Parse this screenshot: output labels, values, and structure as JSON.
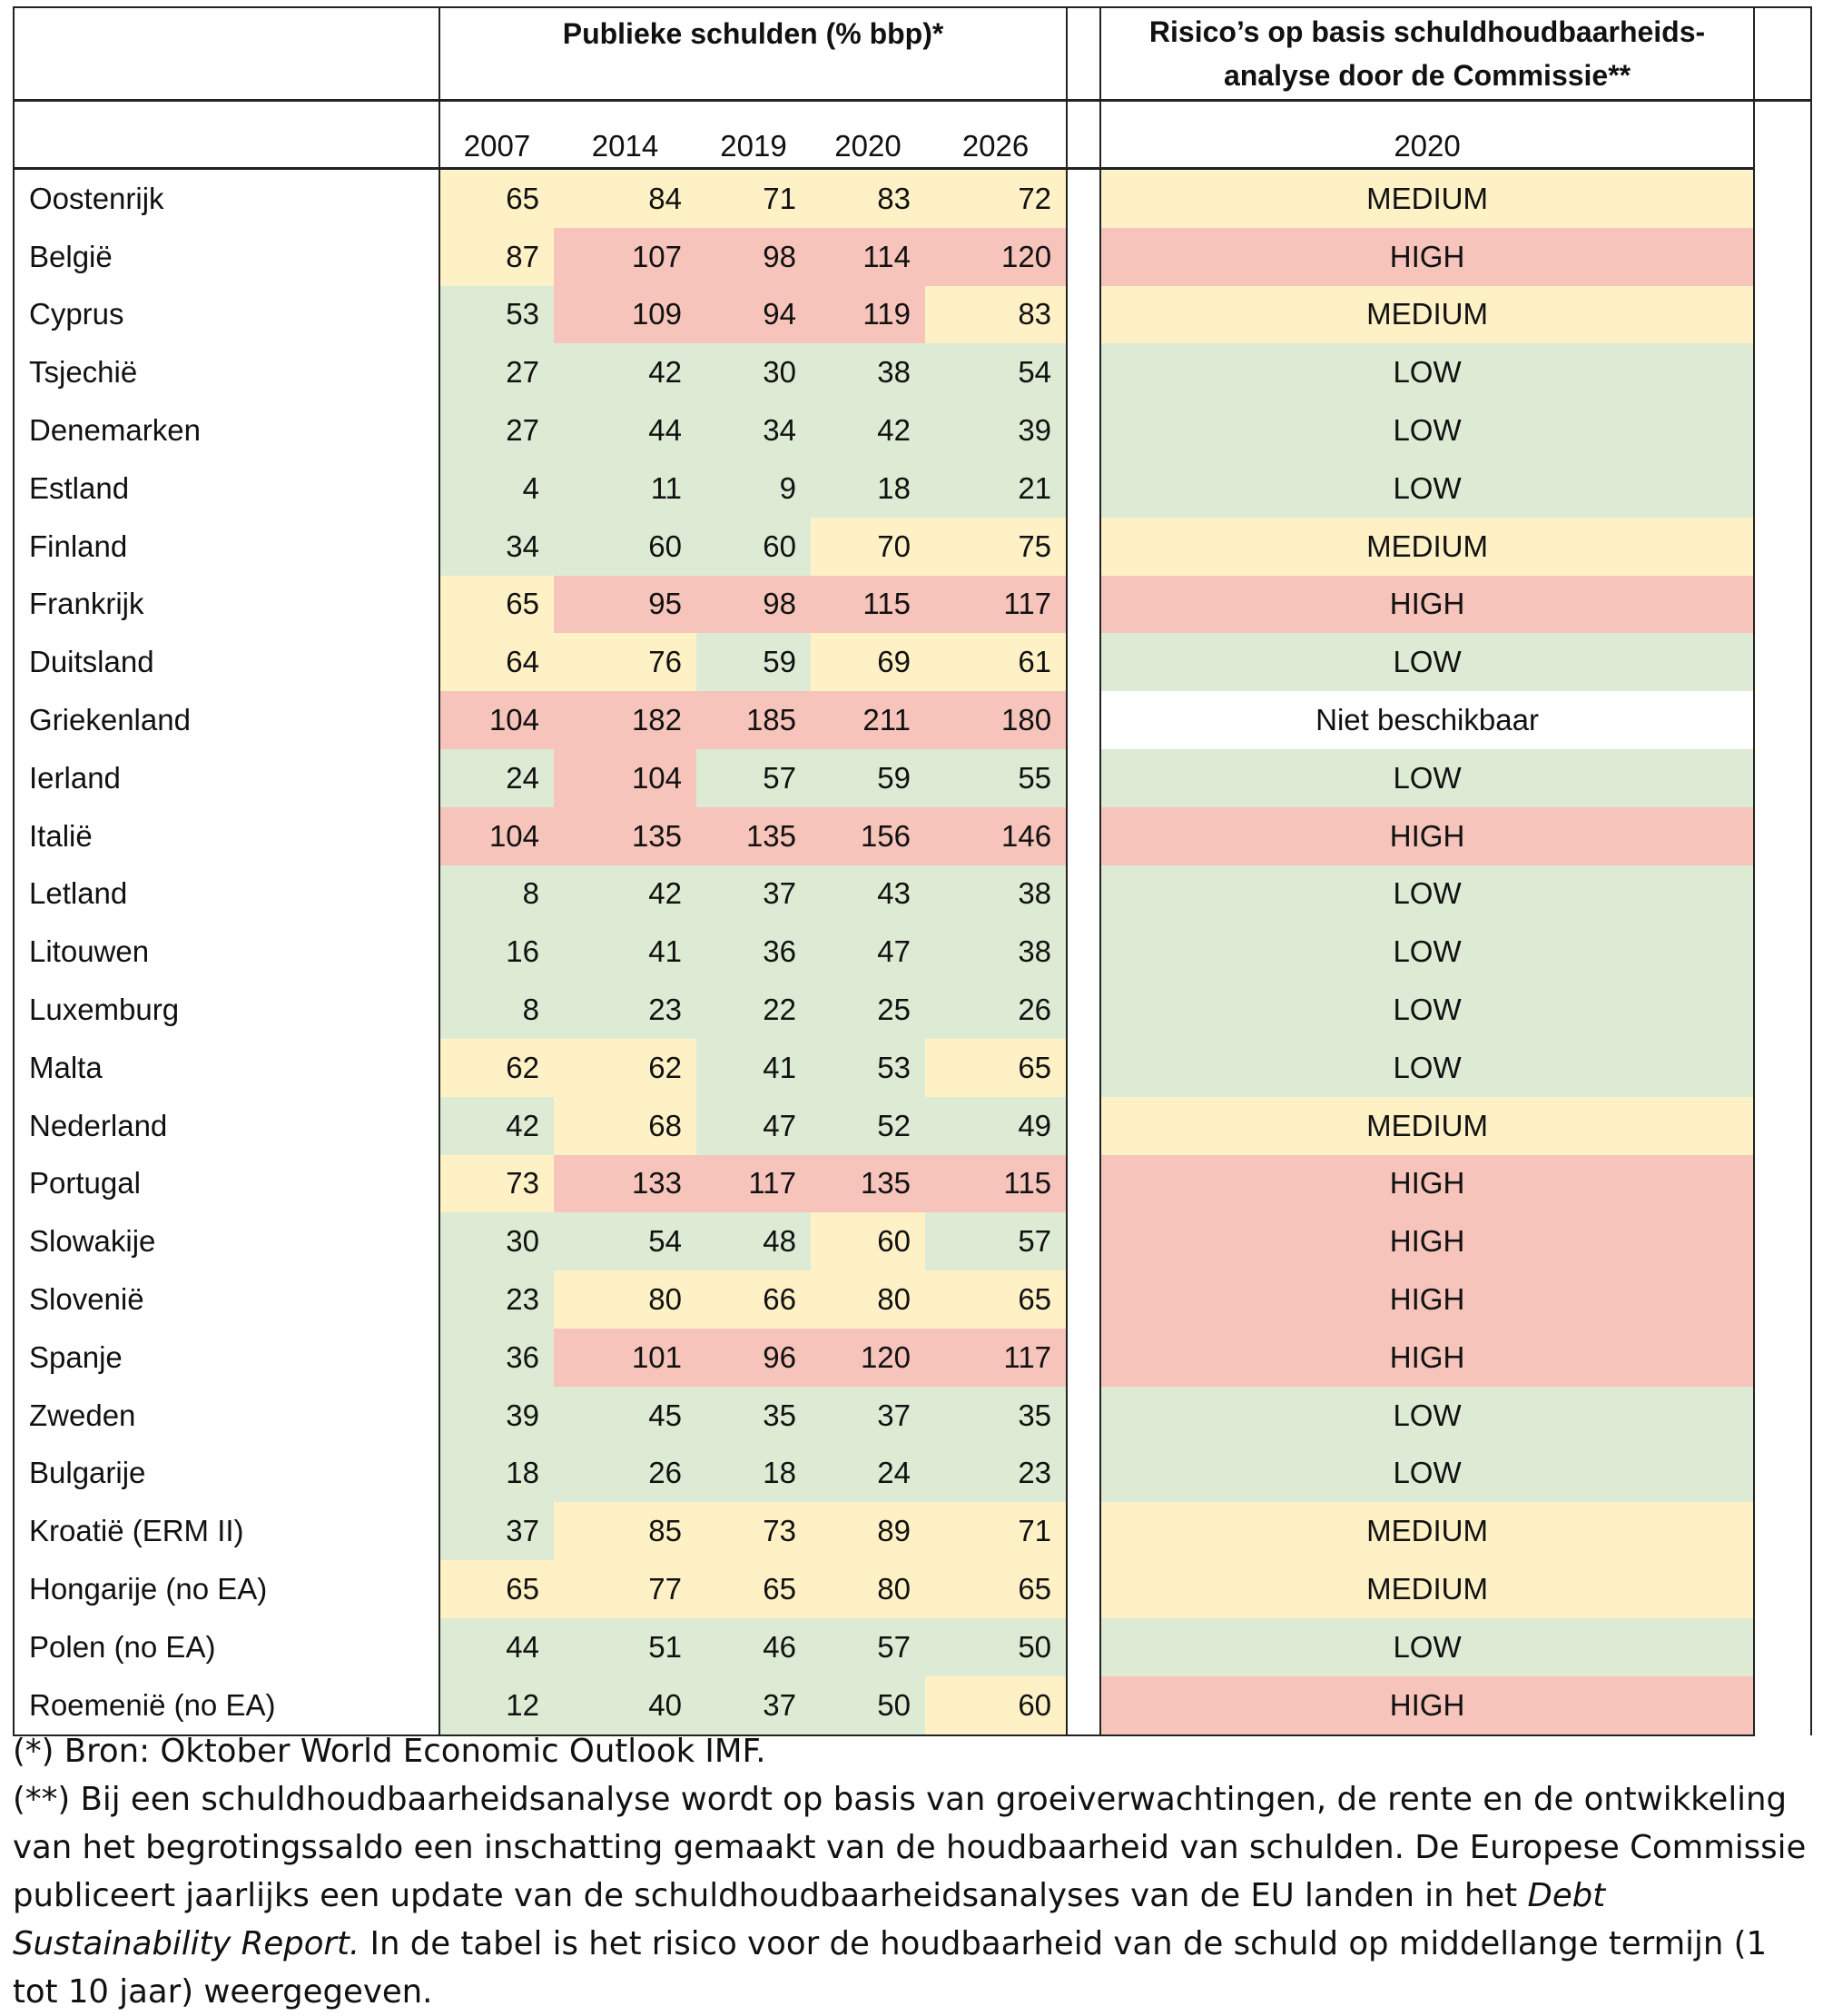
{
  "colors": {
    "g": "#DDEBD4",
    "y": "#FEF1C6",
    "r": "#F6C4BA",
    "w": "#FFFFFF"
  },
  "header": {
    "debt_title": "Publieke schulden (% bbp)*",
    "risk_title_line1": "Risico’s op basis schuldhoudbaarheids-",
    "risk_title_line2": "analyse door de Commissie**",
    "years": [
      "2007",
      "2014",
      "2019",
      "2020",
      "2026"
    ],
    "risk_year": "2020"
  },
  "rows": [
    {
      "country": "Oostenrijk",
      "values": [
        "65",
        "84",
        "71",
        "83",
        "72"
      ],
      "colors": [
        "y",
        "y",
        "y",
        "y",
        "y"
      ],
      "risk": "MEDIUM",
      "risk_color": "y"
    },
    {
      "country": "België",
      "values": [
        "87",
        "107",
        "98",
        "114",
        "120"
      ],
      "colors": [
        "y",
        "r",
        "r",
        "r",
        "r"
      ],
      "risk": "HIGH",
      "risk_color": "r"
    },
    {
      "country": "Cyprus",
      "values": [
        "53",
        "109",
        "94",
        "119",
        "83"
      ],
      "colors": [
        "g",
        "r",
        "r",
        "r",
        "y"
      ],
      "risk": "MEDIUM",
      "risk_color": "y"
    },
    {
      "country": "Tsjechië",
      "values": [
        "27",
        "42",
        "30",
        "38",
        "54"
      ],
      "colors": [
        "g",
        "g",
        "g",
        "g",
        "g"
      ],
      "risk": "LOW",
      "risk_color": "g"
    },
    {
      "country": "Denemarken",
      "values": [
        "27",
        "44",
        "34",
        "42",
        "39"
      ],
      "colors": [
        "g",
        "g",
        "g",
        "g",
        "g"
      ],
      "risk": "LOW",
      "risk_color": "g"
    },
    {
      "country": "Estland",
      "values": [
        "4",
        "11",
        "9",
        "18",
        "21"
      ],
      "colors": [
        "g",
        "g",
        "g",
        "g",
        "g"
      ],
      "risk": "LOW",
      "risk_color": "g"
    },
    {
      "country": "Finland",
      "values": [
        "34",
        "60",
        "60",
        "70",
        "75"
      ],
      "colors": [
        "g",
        "g",
        "g",
        "y",
        "y"
      ],
      "risk": "MEDIUM",
      "risk_color": "y"
    },
    {
      "country": "Frankrijk",
      "values": [
        "65",
        "95",
        "98",
        "115",
        "117"
      ],
      "colors": [
        "y",
        "r",
        "r",
        "r",
        "r"
      ],
      "risk": "HIGH",
      "risk_color": "r"
    },
    {
      "country": "Duitsland",
      "values": [
        "64",
        "76",
        "59",
        "69",
        "61"
      ],
      "colors": [
        "y",
        "y",
        "g",
        "y",
        "y"
      ],
      "risk": "LOW",
      "risk_color": "g"
    },
    {
      "country": "Griekenland",
      "values": [
        "104",
        "182",
        "185",
        "211",
        "180"
      ],
      "colors": [
        "r",
        "r",
        "r",
        "r",
        "r"
      ],
      "risk": "Niet beschikbaar",
      "risk_color": "w"
    },
    {
      "country": "Ierland",
      "values": [
        "24",
        "104",
        "57",
        "59",
        "55"
      ],
      "colors": [
        "g",
        "r",
        "g",
        "g",
        "g"
      ],
      "risk": "LOW",
      "risk_color": "g"
    },
    {
      "country": "Italië",
      "values": [
        "104",
        "135",
        "135",
        "156",
        "146"
      ],
      "colors": [
        "r",
        "r",
        "r",
        "r",
        "r"
      ],
      "risk": "HIGH",
      "risk_color": "r"
    },
    {
      "country": "Letland",
      "values": [
        "8",
        "42",
        "37",
        "43",
        "38"
      ],
      "colors": [
        "g",
        "g",
        "g",
        "g",
        "g"
      ],
      "risk": "LOW",
      "risk_color": "g"
    },
    {
      "country": "Litouwen",
      "values": [
        "16",
        "41",
        "36",
        "47",
        "38"
      ],
      "colors": [
        "g",
        "g",
        "g",
        "g",
        "g"
      ],
      "risk": "LOW",
      "risk_color": "g"
    },
    {
      "country": "Luxemburg",
      "values": [
        "8",
        "23",
        "22",
        "25",
        "26"
      ],
      "colors": [
        "g",
        "g",
        "g",
        "g",
        "g"
      ],
      "risk": "LOW",
      "risk_color": "g"
    },
    {
      "country": "Malta",
      "values": [
        "62",
        "62",
        "41",
        "53",
        "65"
      ],
      "colors": [
        "y",
        "y",
        "g",
        "g",
        "y"
      ],
      "risk": "LOW",
      "risk_color": "g"
    },
    {
      "country": "Nederland",
      "values": [
        "42",
        "68",
        "47",
        "52",
        "49"
      ],
      "colors": [
        "g",
        "y",
        "g",
        "g",
        "g"
      ],
      "risk": "MEDIUM",
      "risk_color": "y"
    },
    {
      "country": "Portugal",
      "values": [
        "73",
        "133",
        "117",
        "135",
        "115"
      ],
      "colors": [
        "y",
        "r",
        "r",
        "r",
        "r"
      ],
      "risk": "HIGH",
      "risk_color": "r"
    },
    {
      "country": "Slowakije",
      "values": [
        "30",
        "54",
        "48",
        "60",
        "57"
      ],
      "colors": [
        "g",
        "g",
        "g",
        "y",
        "g"
      ],
      "risk": "HIGH",
      "risk_color": "r"
    },
    {
      "country": "Slovenië",
      "values": [
        "23",
        "80",
        "66",
        "80",
        "65"
      ],
      "colors": [
        "g",
        "y",
        "y",
        "y",
        "y"
      ],
      "risk": "HIGH",
      "risk_color": "r"
    },
    {
      "country": "Spanje",
      "values": [
        "36",
        "101",
        "96",
        "120",
        "117"
      ],
      "colors": [
        "g",
        "r",
        "r",
        "r",
        "r"
      ],
      "risk": "HIGH",
      "risk_color": "r"
    },
    {
      "country": "Zweden",
      "values": [
        "39",
        "45",
        "35",
        "37",
        "35"
      ],
      "colors": [
        "g",
        "g",
        "g",
        "g",
        "g"
      ],
      "risk": "LOW",
      "risk_color": "g"
    },
    {
      "country": "Bulgarije",
      "values": [
        "18",
        "26",
        "18",
        "24",
        "23"
      ],
      "colors": [
        "g",
        "g",
        "g",
        "g",
        "g"
      ],
      "risk": "LOW",
      "risk_color": "g"
    },
    {
      "country": "Kroatië (ERM II)",
      "values": [
        "37",
        "85",
        "73",
        "89",
        "71"
      ],
      "colors": [
        "g",
        "y",
        "y",
        "y",
        "y"
      ],
      "risk": "MEDIUM",
      "risk_color": "y"
    },
    {
      "country": "Hongarije (no EA)",
      "values": [
        "65",
        "77",
        "65",
        "80",
        "65"
      ],
      "colors": [
        "y",
        "y",
        "y",
        "y",
        "y"
      ],
      "risk": "MEDIUM",
      "risk_color": "y"
    },
    {
      "country": "Polen (no EA)",
      "values": [
        "44",
        "51",
        "46",
        "57",
        "50"
      ],
      "colors": [
        "g",
        "g",
        "g",
        "g",
        "g"
      ],
      "risk": "LOW",
      "risk_color": "g"
    },
    {
      "country": "Roemenië (no EA)",
      "values": [
        "12",
        "40",
        "37",
        "50",
        "60"
      ],
      "colors": [
        "g",
        "g",
        "g",
        "g",
        "y"
      ],
      "risk": "HIGH",
      "risk_color": "r"
    }
  ],
  "footnotes": {
    "source": "(*) Bron: Oktober World Economic Outlook IMF.",
    "note_part1": "(**) Bij een schuldhoudbaarheidsanalyse wordt op basis van groeiverwachtingen, de rente en de ontwikkeling van het begrotingssaldo een inschatting gemaakt van de houdbaarheid van schulden. De Europese Commissie publiceert jaarlijks een update van de schuldhoudbaarheidsanalyses van de EU landen in het ",
    "note_italic": "Debt Sustainability Report.",
    "note_part2": " In de tabel is het risico voor de houdbaarheid van de schuld op middellange termijn (1 tot 10 jaar) weergegeven."
  }
}
